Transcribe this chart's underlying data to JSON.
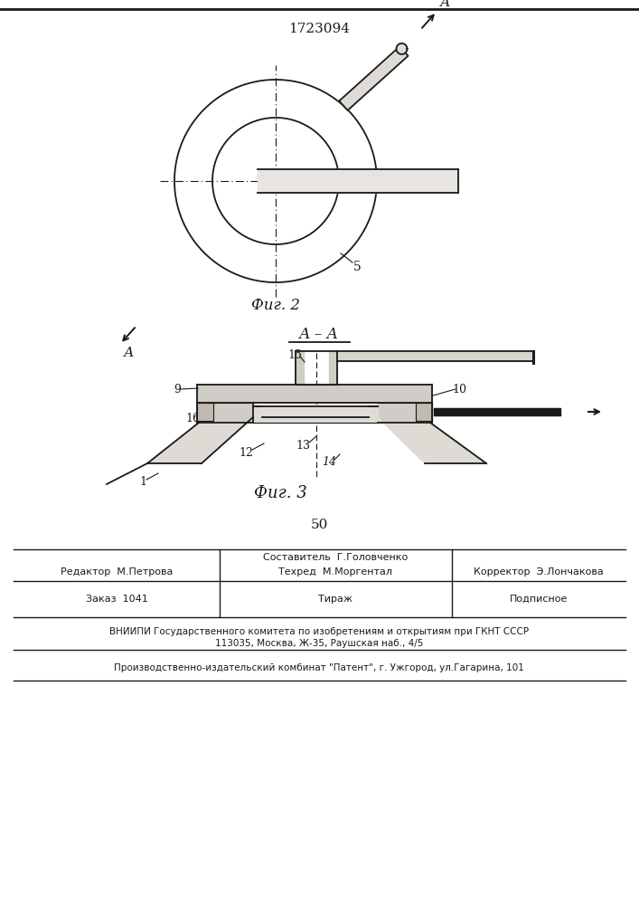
{
  "patent_number": "1723094",
  "fig2_label": "Фиг. 2",
  "fig3_label": "Фиг. 3",
  "section_label": "А – А",
  "page_number": "50",
  "bg_color": "#ffffff",
  "line_color": "#1a1a1a"
}
